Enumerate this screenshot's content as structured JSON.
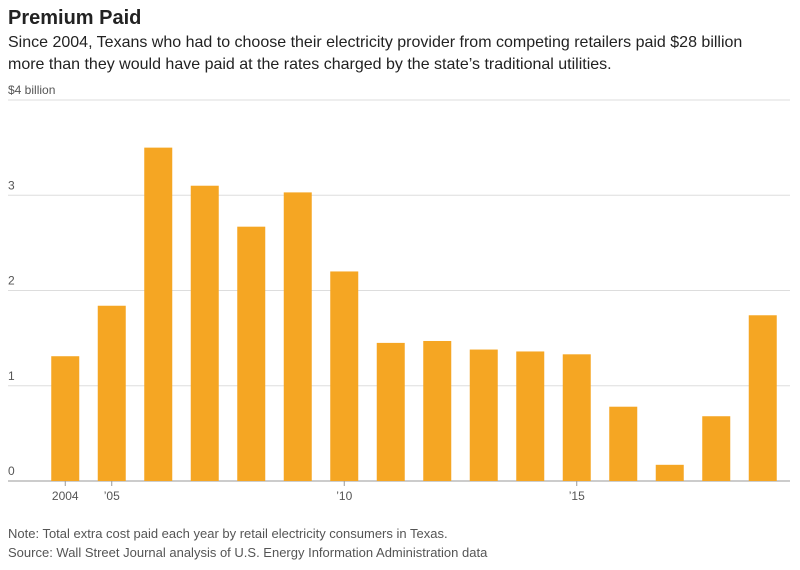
{
  "chart_data": {
    "type": "bar",
    "title": "Premium Paid",
    "subtitle": [
      "Since 2004, Texans who had to choose their electricity provider from competing retailers paid $28 billion",
      "more than they would have paid at the rates charged by the state’s traditional utilities."
    ],
    "categories": [
      "2004",
      "’05",
      null,
      null,
      null,
      null,
      "’10",
      null,
      null,
      null,
      null,
      "’15",
      null,
      null,
      null,
      null
    ],
    "values": [
      1.31,
      1.84,
      3.5,
      3.1,
      2.67,
      3.03,
      2.2,
      1.45,
      1.47,
      1.38,
      1.36,
      1.33,
      0.78,
      0.17,
      0.68,
      1.74
    ],
    "color": "#f5a623",
    "ylim": [
      0,
      4
    ],
    "yticks": [
      0,
      1,
      2,
      3,
      {
        "value": 4,
        "label": "$4 billion"
      }
    ],
    "grid": true,
    "note": "Note: Total extra cost paid each year by retail electricity consumers in Texas.",
    "source": "Source: Wall Street Journal analysis of U.S. Energy Information Administration data"
  }
}
